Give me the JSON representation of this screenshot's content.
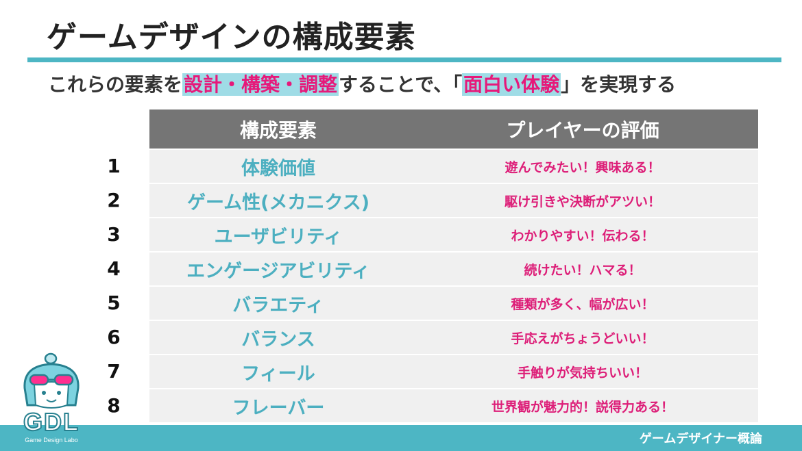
{
  "slide": {
    "title": "ゲームデザインの構成要素",
    "subtitle": {
      "part1": "これらの要素を",
      "highlight1": "設計・構築・調整",
      "part2": "することで、「",
      "highlight2": "面白い体験",
      "part3": "」を実現する"
    }
  },
  "table": {
    "headers": [
      "構成要素",
      "プレイヤーの評価"
    ],
    "rows": [
      {
        "num": "1",
        "element": "体験価値",
        "evaluation": "遊んでみたい！興味ある！"
      },
      {
        "num": "2",
        "element": "ゲーム性(メカニクス)",
        "evaluation": "駆け引きや決断がアツい！"
      },
      {
        "num": "3",
        "element": "ユーザビリティ",
        "evaluation": "わかりやすい！伝わる！"
      },
      {
        "num": "4",
        "element": "エンゲージアビリティ",
        "evaluation": "続けたい！ハマる！"
      },
      {
        "num": "5",
        "element": "バラエティ",
        "evaluation": "種類が多く、幅が広い！"
      },
      {
        "num": "6",
        "element": "バランス",
        "evaluation": "手応えがちょうどいい！"
      },
      {
        "num": "7",
        "element": "フィール",
        "evaluation": "手触りが気持ちいい！"
      },
      {
        "num": "8",
        "element": "フレーバー",
        "evaluation": "世界観が魅力的！説得力ある！"
      }
    ]
  },
  "logo": {
    "name": "GDL",
    "subtitle": "Game Design Labo",
    "icon": "mascot-character-icon"
  },
  "footer": {
    "course": "ゲームデザイナー概論"
  },
  "colors": {
    "accent": "#4db6c4",
    "highlight_bg": "#9fdce6",
    "magenta": "#dd1e78",
    "header_gray": "#757575",
    "row_bg": "#f0f0f0"
  }
}
